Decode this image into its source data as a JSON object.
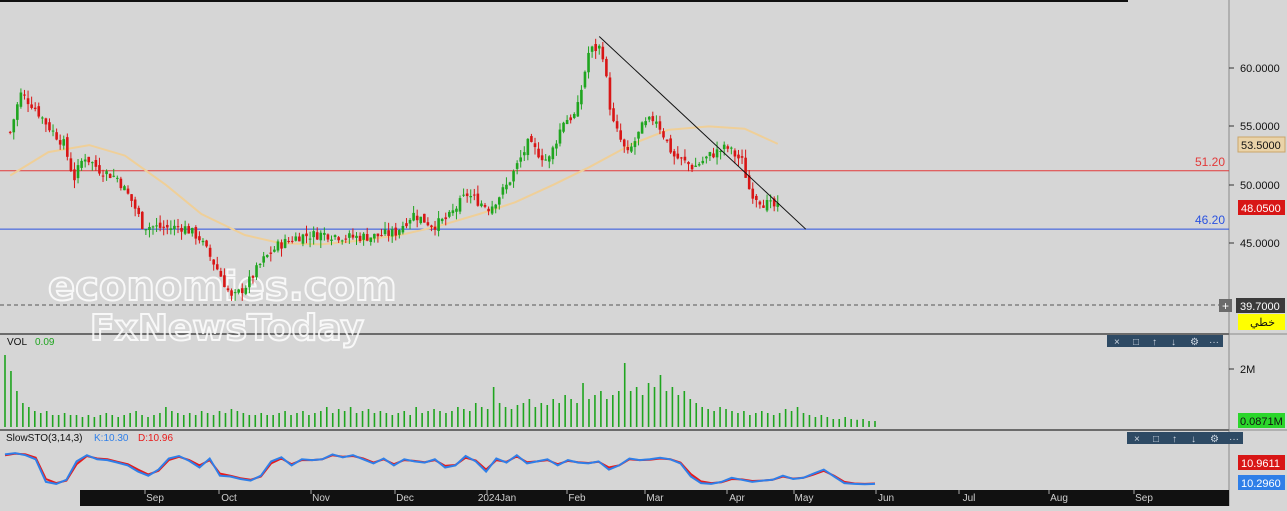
{
  "watermark": {
    "line1": "economies.com",
    "line2": "FxNewsToday"
  },
  "price_axis": {
    "ticks": [
      "60.0000",
      "55.0000",
      "50.0000",
      "45.0000"
    ],
    "current_price": "53.5000",
    "last_price": "48.0500",
    "crosshair_price": "39.7000",
    "crosshair_label": "خطي",
    "crosshair_plus": "+"
  },
  "levels": [
    {
      "value": 51.2,
      "label": "51.20",
      "color": "#e23a3a"
    },
    {
      "value": 46.2,
      "label": "46.20",
      "color": "#2a52e0"
    }
  ],
  "volume_panel": {
    "label": "VOL",
    "value": "0.09",
    "axis_tick": "2M",
    "last_value": "0.0871M"
  },
  "sto_panel": {
    "label": "SlowSTO(3,14,3)",
    "k_text": "K:10.30",
    "d_text": "D:10.96",
    "d_last": "10.9611",
    "k_last": "10.2960"
  },
  "x_axis": {
    "labels": [
      "Sep",
      "Oct",
      "Nov",
      "Dec",
      "2024Jan",
      "Feb",
      "Mar",
      "Apr",
      "May",
      "Jun",
      "Jul",
      "Aug",
      "Sep"
    ]
  },
  "toolbar_icons": [
    "close-icon",
    "window-icon",
    "arrow-up-icon",
    "arrow-down-icon",
    "settings-icon",
    "more-icon"
  ],
  "colors": {
    "up": "#1fa51f",
    "down": "#d81616",
    "ma": "#efcf98",
    "k_line": "#2f7fe8",
    "d_line": "#e81a1a",
    "volume": "#1fa51f"
  },
  "chart_data": [
    {
      "type": "candlestick",
      "title": "",
      "ylim": [
        38.5,
        62.5
      ],
      "levels": [
        51.2,
        46.2
      ],
      "candles": [
        {
          "start": [
            54.0,
            57.0
          ],
          "end": [
            47.6,
            48.0
          ]
        }
      ],
      "close_series": [
        [
          "2023-08-01",
          54.5
        ],
        [
          "2023-08-05",
          57.8
        ],
        [
          "2023-08-10",
          56.8
        ],
        [
          "2023-08-16",
          55.0
        ],
        [
          "2023-08-22",
          53.5
        ],
        [
          "2023-08-26",
          50.5
        ],
        [
          "2023-08-30",
          52.5
        ],
        [
          "2023-09-05",
          51.3
        ],
        [
          "2023-09-12",
          50.6
        ],
        [
          "2023-09-18",
          48.5
        ],
        [
          "2023-09-22",
          46.5
        ],
        [
          "2023-10-01",
          46.3
        ],
        [
          "2023-10-08",
          46.4
        ],
        [
          "2023-10-14",
          45.5
        ],
        [
          "2023-10-18",
          44.0
        ],
        [
          "2023-10-22",
          42.5
        ],
        [
          "2023-10-27",
          40.2
        ],
        [
          "2023-11-02",
          41.5
        ],
        [
          "2023-11-08",
          43.5
        ],
        [
          "2023-11-14",
          44.8
        ],
        [
          "2023-11-22",
          45.6
        ],
        [
          "2023-12-02",
          45.8
        ],
        [
          "2023-12-12",
          45.5
        ],
        [
          "2023-12-22",
          45.6
        ],
        [
          "2023-12-30",
          45.9
        ],
        [
          "2024-01-06",
          47.5
        ],
        [
          "2024-01-14",
          46.5
        ],
        [
          "2024-01-20",
          47.2
        ],
        [
          "2024-01-27",
          49.2
        ],
        [
          "2024-02-05",
          48.0
        ],
        [
          "2024-02-12",
          50.0
        ],
        [
          "2024-02-20",
          53.5
        ],
        [
          "2024-02-28",
          52.0
        ],
        [
          "2024-03-05",
          55.5
        ],
        [
          "2024-03-10",
          56.0
        ],
        [
          "2024-03-15",
          61.5
        ],
        [
          "2024-03-20",
          61.8
        ],
        [
          "2024-03-24",
          55.5
        ],
        [
          "2024-03-30",
          52.5
        ],
        [
          "2024-04-05",
          55.0
        ],
        [
          "2024-04-10",
          55.8
        ],
        [
          "2024-04-17",
          52.5
        ],
        [
          "2024-04-25",
          51.5
        ],
        [
          "2024-05-02",
          52.6
        ],
        [
          "2024-05-08",
          53.2
        ],
        [
          "2024-05-14",
          52.0
        ],
        [
          "2024-05-17",
          49.5
        ],
        [
          "2024-05-22",
          48.5
        ],
        [
          "2024-05-28",
          48.0
        ]
      ],
      "moving_average": [
        [
          "2023-08-01",
          50.8
        ],
        [
          "2023-08-16",
          52.8
        ],
        [
          "2023-09-01",
          53.4
        ],
        [
          "2023-09-15",
          52.5
        ],
        [
          "2023-10-01",
          50.0
        ],
        [
          "2023-10-15",
          47.5
        ],
        [
          "2023-11-01",
          45.7
        ],
        [
          "2023-11-15",
          45.0
        ],
        [
          "2023-12-01",
          44.9
        ],
        [
          "2023-12-15",
          45.2
        ],
        [
          "2024-01-01",
          45.7
        ],
        [
          "2024-01-15",
          46.4
        ],
        [
          "2024-02-01",
          47.5
        ],
        [
          "2024-02-15",
          48.5
        ],
        [
          "2024-03-01",
          50.0
        ],
        [
          "2024-03-15",
          51.5
        ],
        [
          "2024-04-01",
          53.5
        ],
        [
          "2024-04-15",
          54.7
        ],
        [
          "2024-05-01",
          55.0
        ],
        [
          "2024-05-15",
          54.8
        ],
        [
          "2024-05-28",
          53.5
        ]
      ],
      "trendline": [
        [
          "2024-03-19",
          62.7
        ],
        [
          "2024-06-08",
          46.2
        ]
      ],
      "x_range": [
        "2023-07-28",
        "2024-10-01"
      ]
    },
    {
      "type": "bar",
      "series": [
        {
          "name": "VOL",
          "values": [
            1.8,
            1.4,
            0.9,
            0.6,
            0.5,
            0.4,
            0.35,
            0.4,
            0.3,
            0.3,
            0.35,
            0.3,
            0.3,
            0.25,
            0.3,
            0.25,
            0.3,
            0.35,
            0.3,
            0.25,
            0.3,
            0.35,
            0.4,
            0.3,
            0.25,
            0.3,
            0.35,
            0.5,
            0.4,
            0.35,
            0.3,
            0.35,
            0.3,
            0.4,
            0.35,
            0.3,
            0.4,
            0.35,
            0.45,
            0.4,
            0.35,
            0.3,
            0.3,
            0.35,
            0.3,
            0.3,
            0.35,
            0.4,
            0.3,
            0.35,
            0.4,
            0.3,
            0.35,
            0.4,
            0.5,
            0.35,
            0.45,
            0.4,
            0.5,
            0.35,
            0.4,
            0.45,
            0.35,
            0.4,
            0.35,
            0.3,
            0.35,
            0.4,
            0.3,
            0.5,
            0.35,
            0.4,
            0.45,
            0.4,
            0.35,
            0.4,
            0.5,
            0.45,
            0.4,
            0.6,
            0.5,
            0.45,
            1.0,
            0.6,
            0.5,
            0.45,
            0.55,
            0.6,
            0.7,
            0.5,
            0.6,
            0.55,
            0.7,
            0.6,
            0.8,
            0.7,
            0.6,
            1.1,
            0.7,
            0.8,
            0.9,
            0.7,
            0.8,
            0.9,
            1.6,
            0.9,
            1.0,
            0.8,
            1.1,
            1.0,
            1.3,
            0.9,
            1.0,
            0.8,
            0.9,
            0.7,
            0.6,
            0.5,
            0.45,
            0.4,
            0.5,
            0.45,
            0.4,
            0.35,
            0.4,
            0.3,
            0.35,
            0.4,
            0.35,
            0.3,
            0.35,
            0.45,
            0.4,
            0.5,
            0.35,
            0.3,
            0.25,
            0.3,
            0.25,
            0.2,
            0.2,
            0.25,
            0.2,
            0.18,
            0.2,
            0.15,
            0.15
          ]
        }
      ],
      "y_tick": "2M"
    },
    {
      "type": "line",
      "title": "SlowSTO(3,14,3)",
      "ylim": [
        0,
        100
      ],
      "series": [
        {
          "name": "K",
          "values": [
            82,
            85,
            80,
            70,
            15,
            10,
            20,
            65,
            80,
            70,
            68,
            62,
            55,
            40,
            30,
            45,
            72,
            78,
            66,
            50,
            72,
            30,
            28,
            22,
            18,
            30,
            65,
            75,
            55,
            70,
            68,
            70,
            82,
            75,
            80,
            70,
            60,
            72,
            55,
            70,
            65,
            62,
            70,
            50,
            55,
            78,
            65,
            40,
            72,
            62,
            80,
            60,
            65,
            70,
            55,
            68,
            62,
            60,
            65,
            45,
            55,
            72,
            68,
            70,
            74,
            70,
            60,
            28,
            12,
            10,
            15,
            25,
            20,
            15,
            18,
            20,
            30,
            22,
            25,
            35,
            45,
            28,
            12,
            10,
            9,
            10
          ]
        },
        {
          "name": "D",
          "values": [
            80,
            84,
            82,
            74,
            22,
            12,
            18,
            58,
            78,
            72,
            70,
            64,
            58,
            45,
            33,
            42,
            68,
            76,
            68,
            55,
            68,
            35,
            30,
            24,
            20,
            28,
            60,
            72,
            58,
            68,
            68,
            70,
            80,
            76,
            78,
            72,
            62,
            70,
            58,
            68,
            66,
            63,
            68,
            54,
            56,
            74,
            67,
            45,
            68,
            64,
            77,
            63,
            65,
            68,
            58,
            66,
            63,
            61,
            64,
            50,
            55,
            70,
            68,
            69,
            72,
            70,
            62,
            34,
            16,
            12,
            14,
            22,
            21,
            17,
            18,
            20,
            28,
            23,
            25,
            33,
            42,
            30,
            15,
            11,
            10,
            11
          ]
        }
      ],
      "last_values": {
        "K": 10.3,
        "D": 10.96
      }
    }
  ]
}
